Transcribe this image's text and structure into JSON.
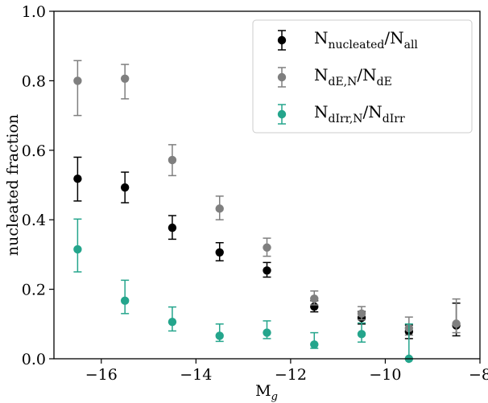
{
  "chart_data": {
    "type": "scatter",
    "xlabel": "M",
    "xlabel_sub": "g",
    "ylabel": "nucleated fraction",
    "xlim": [
      -17,
      -8
    ],
    "ylim": [
      0.0,
      1.0
    ],
    "x_ticks": [
      -16,
      -14,
      -12,
      -10,
      -8
    ],
    "x_tick_labels": [
      "−16",
      "−14",
      "−12",
      "−10",
      "−8"
    ],
    "y_ticks": [
      0.0,
      0.2,
      0.4,
      0.6,
      0.8,
      1.0
    ],
    "y_tick_labels": [
      "0.0",
      "0.2",
      "0.4",
      "0.6",
      "0.8",
      "1.0"
    ],
    "legend_position": "top-right",
    "grid": false,
    "series": [
      {
        "legend": {
          "base": "N",
          "sub": "nucleated",
          "sep": "/",
          "base2": "N",
          "sub2": "all"
        },
        "color": "#000000",
        "x": [
          -16.5,
          -15.5,
          -14.5,
          -13.5,
          -12.5,
          -11.5,
          -10.5,
          -9.5,
          -8.5
        ],
        "y": [
          0.518,
          0.493,
          0.377,
          0.306,
          0.254,
          0.15,
          0.118,
          0.078,
          0.096
        ],
        "err_low": [
          0.454,
          0.449,
          0.344,
          0.282,
          0.235,
          0.135,
          0.1,
          0.058,
          0.066
        ],
        "err_high": [
          0.58,
          0.537,
          0.412,
          0.334,
          0.277,
          0.167,
          0.136,
          0.097,
          0.16
        ]
      },
      {
        "legend": {
          "base": "N",
          "sub": "dE,N",
          "sep": "/",
          "base2": "N",
          "sub2": "dE"
        },
        "color": "#7f7f7f",
        "x": [
          -16.5,
          -15.5,
          -14.5,
          -13.5,
          -12.5,
          -11.5,
          -10.5,
          -9.5,
          -8.5
        ],
        "y": [
          0.8,
          0.806,
          0.572,
          0.432,
          0.32,
          0.173,
          0.13,
          0.088,
          0.101
        ],
        "err_low": [
          0.7,
          0.748,
          0.527,
          0.4,
          0.295,
          0.155,
          0.112,
          0.068,
          0.075
        ],
        "err_high": [
          0.858,
          0.847,
          0.616,
          0.468,
          0.347,
          0.195,
          0.15,
          0.12,
          0.172
        ]
      },
      {
        "legend": {
          "base": "N",
          "sub": "dIrr,N",
          "sep": "/",
          "base2": "N",
          "sub2": "dIrr"
        },
        "color": "#24a58c",
        "x": [
          -16.5,
          -15.5,
          -14.5,
          -13.5,
          -12.5,
          -11.5,
          -10.5,
          -9.5
        ],
        "y": [
          0.315,
          0.167,
          0.106,
          0.066,
          0.075,
          0.041,
          0.071,
          0.0
        ],
        "err_low": [
          0.25,
          0.13,
          0.08,
          0.05,
          0.058,
          0.03,
          0.048,
          0.0
        ],
        "err_high": [
          0.402,
          0.226,
          0.149,
          0.1,
          0.109,
          0.075,
          0.103,
          0.1
        ]
      }
    ]
  }
}
